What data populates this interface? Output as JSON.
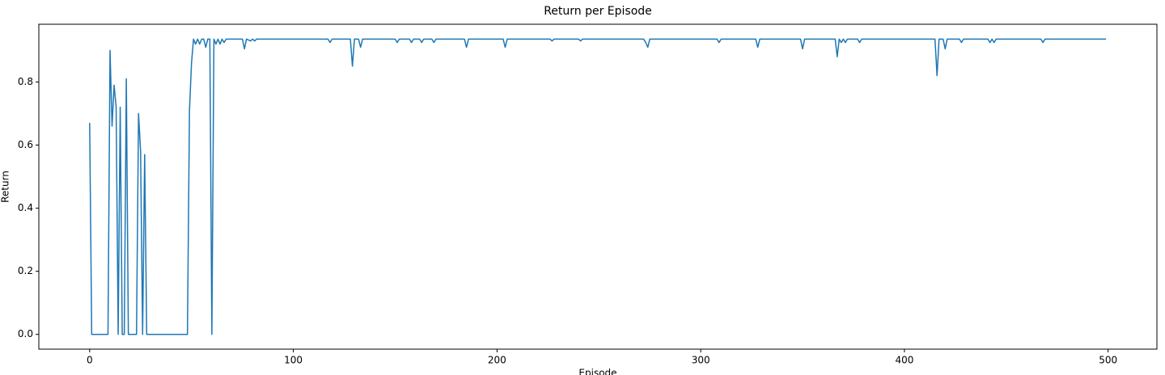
{
  "chart_data": {
    "type": "line",
    "title": "Return per Episode",
    "x_label": "Episode",
    "y_label": "Return",
    "x": [
      0,
      1,
      9,
      10,
      11,
      12,
      13,
      14,
      15,
      16,
      17,
      18,
      19,
      23,
      24,
      25,
      26,
      27,
      28,
      48,
      49,
      50,
      51,
      52,
      53,
      54,
      55,
      56,
      57,
      58,
      59,
      60,
      61,
      62,
      63,
      64,
      65,
      66,
      67,
      75,
      76,
      77,
      79,
      80,
      81,
      82,
      117,
      118,
      119,
      128,
      129,
      130,
      132,
      133,
      134,
      150,
      151,
      152,
      157,
      158,
      159,
      162,
      163,
      164,
      168,
      169,
      170,
      184,
      185,
      186,
      203,
      204,
      205,
      226,
      227,
      228,
      240,
      241,
      242,
      272,
      273,
      274,
      275,
      308,
      309,
      310,
      327,
      328,
      329,
      349,
      350,
      351,
      366,
      367,
      368,
      369,
      370,
      371,
      372,
      377,
      378,
      379,
      415,
      416,
      417,
      419,
      420,
      421,
      427,
      428,
      429,
      441,
      442,
      443,
      444,
      445,
      467,
      468,
      469,
      499
    ],
    "values": [
      0.67,
      0,
      0,
      0.9,
      0.66,
      0.79,
      0.72,
      0,
      0.72,
      0,
      0,
      0.81,
      0,
      0,
      0.7,
      0.58,
      0,
      0.57,
      0,
      0,
      0.71,
      0.86,
      0.936,
      0.92,
      0.936,
      0.92,
      0.936,
      0.936,
      0.91,
      0.936,
      0.936,
      0,
      0.936,
      0.92,
      0.936,
      0.92,
      0.936,
      0.925,
      0.936,
      0.936,
      0.905,
      0.936,
      0.93,
      0.936,
      0.93,
      0.936,
      0.936,
      0.925,
      0.936,
      0.936,
      0.85,
      0.936,
      0.936,
      0.91,
      0.936,
      0.936,
      0.925,
      0.936,
      0.936,
      0.925,
      0.936,
      0.936,
      0.925,
      0.936,
      0.936,
      0.925,
      0.936,
      0.936,
      0.91,
      0.936,
      0.936,
      0.91,
      0.936,
      0.936,
      0.93,
      0.936,
      0.936,
      0.93,
      0.936,
      0.936,
      0.925,
      0.91,
      0.936,
      0.936,
      0.925,
      0.936,
      0.936,
      0.91,
      0.936,
      0.936,
      0.905,
      0.936,
      0.936,
      0.88,
      0.936,
      0.925,
      0.936,
      0.925,
      0.936,
      0.936,
      0.925,
      0.936,
      0.936,
      0.82,
      0.936,
      0.936,
      0.905,
      0.936,
      0.936,
      0.925,
      0.936,
      0.936,
      0.925,
      0.936,
      0.925,
      0.936,
      0.936,
      0.925,
      0.936,
      0.936
    ],
    "color": "#1f77b4",
    "xlim": [
      -24.95,
      523.95
    ],
    "xticks": [
      0,
      100,
      200,
      300,
      400,
      500
    ],
    "ylim": [
      -0.0468,
      0.983
    ],
    "yticks": [
      {
        "value": 0,
        "label": "0.0"
      },
      0.2,
      0.4,
      0.6,
      0.8
    ],
    "grid": false
  }
}
